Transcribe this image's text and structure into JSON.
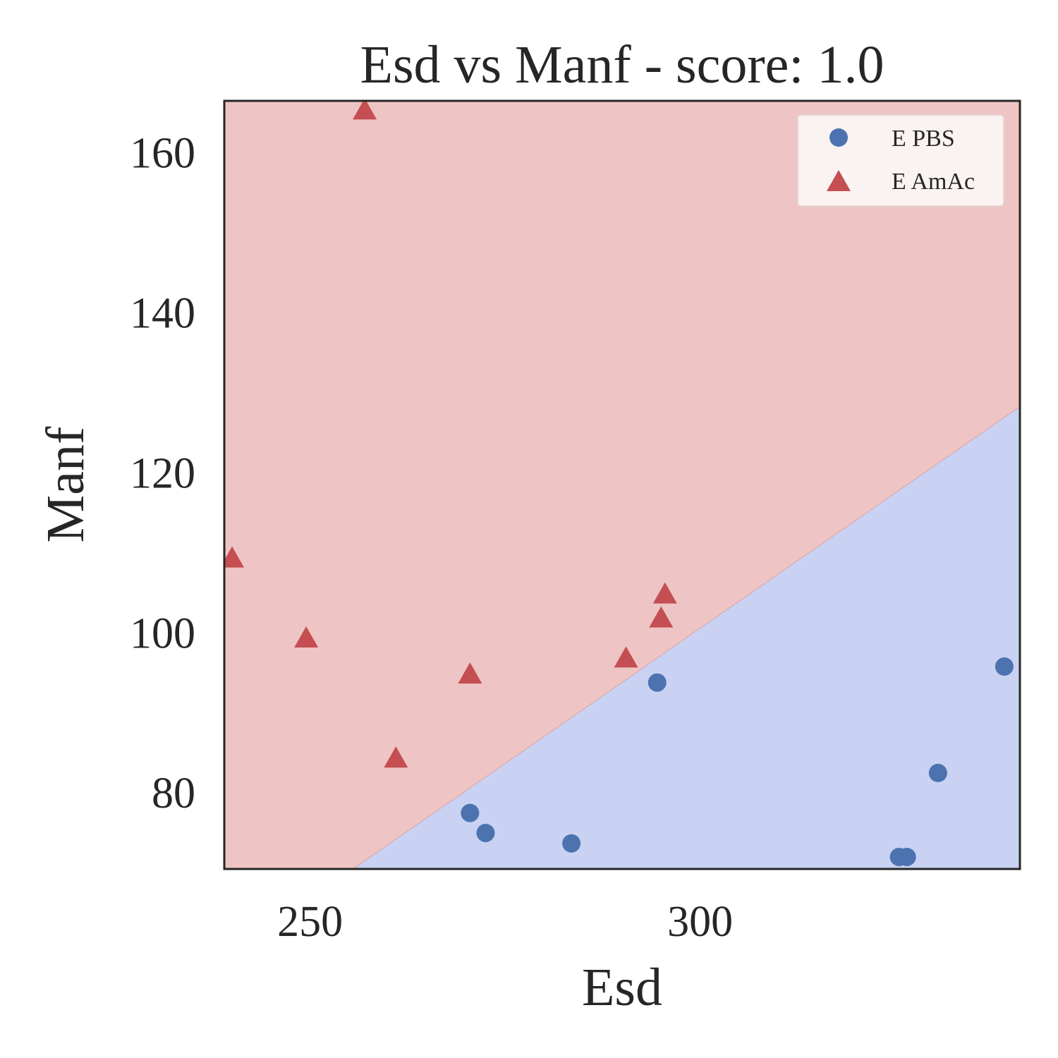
{
  "chart_data": {
    "type": "scatter",
    "title": "Esd vs Manf - score: 1.0",
    "xlabel": "Esd",
    "ylabel": "Manf",
    "xlim": [
      239,
      341
    ],
    "ylim": [
      70.5,
      166.5
    ],
    "xticks": [
      250,
      300
    ],
    "yticks": [
      80,
      100,
      120,
      140,
      160
    ],
    "grid": false,
    "legend_position": "top-right",
    "decision_boundary": {
      "line": [
        [
          255.5,
          70.5
        ],
        [
          341,
          128.3
        ]
      ],
      "below_class": "E PBS",
      "above_class": "E AmAc"
    },
    "series": [
      {
        "name": "E PBS",
        "marker": "circle",
        "color": "#4c72b0",
        "region_color": "#c9d2f2",
        "points": [
          [
            270.5,
            77.5
          ],
          [
            272.5,
            75
          ],
          [
            283.5,
            73.7
          ],
          [
            294.5,
            93.8
          ],
          [
            325.5,
            72
          ],
          [
            326.5,
            72
          ],
          [
            330.5,
            82.5
          ],
          [
            339,
            95.8
          ]
        ]
      },
      {
        "name": "E AmAc",
        "marker": "triangle",
        "color": "#c44e52",
        "region_color": "#eec5c4",
        "points": [
          [
            257,
            165.5
          ],
          [
            240,
            109.5
          ],
          [
            249.5,
            99.5
          ],
          [
            261,
            84.5
          ],
          [
            270.5,
            95
          ],
          [
            290.5,
            97
          ],
          [
            295,
            102
          ],
          [
            295.5,
            105
          ]
        ]
      }
    ]
  }
}
